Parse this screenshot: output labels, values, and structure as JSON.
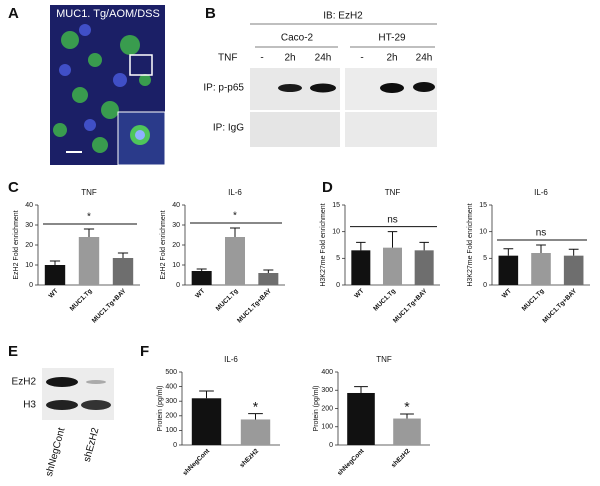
{
  "panels": {
    "labels": [
      "A",
      "B",
      "C",
      "D",
      "E",
      "F"
    ]
  },
  "panel_a": {
    "title": "MUC1. Tg/AOM/DSS"
  },
  "panel_b": {
    "header": "IB: EzH2",
    "cell_lines": [
      "Caco-2",
      "HT-29"
    ],
    "treatment_label": "TNF",
    "conditions": [
      "-",
      "2h",
      "24h",
      "-",
      "2h",
      "24h"
    ],
    "rows": [
      "IP: p-p65",
      "IP: IgG"
    ]
  },
  "panel_e": {
    "bands": [
      "EzH2",
      "H3"
    ],
    "lanes": [
      "shNegCont",
      "shEzH2"
    ]
  },
  "chart_data": [
    {
      "type": "bar",
      "title": "TNF",
      "ylabel": "EzH2 Fold enrichment",
      "categories": [
        "WT",
        "MUC1.Tg",
        "MUC1.Tg+BAY"
      ],
      "values": [
        10,
        24,
        13.5
      ],
      "errors": [
        2,
        4,
        2.5
      ],
      "colors": [
        "#111111",
        "#9a9a9a",
        "#6e6e6e"
      ],
      "ylim": [
        0,
        40
      ],
      "yticks": [
        0,
        10,
        20,
        30,
        40
      ],
      "annotation": "*"
    },
    {
      "type": "bar",
      "title": "IL-6",
      "ylabel": "EzH2 Fold enrichment",
      "categories": [
        "WT",
        "MUC1.Tg",
        "MUC1.Tg+BAY"
      ],
      "values": [
        7,
        24,
        6
      ],
      "errors": [
        1,
        4.5,
        1.5
      ],
      "colors": [
        "#111111",
        "#9a9a9a",
        "#6e6e6e"
      ],
      "ylim": [
        0,
        40
      ],
      "yticks": [
        0,
        10,
        20,
        30,
        40
      ],
      "annotation": "*"
    },
    {
      "type": "bar",
      "title": "TNF",
      "ylabel": "H3K27me Fold enrichment",
      "categories": [
        "WT",
        "MUC1.Tg",
        "MUC1.Tg+BAY"
      ],
      "values": [
        6.5,
        7,
        6.5
      ],
      "errors": [
        1.5,
        3,
        1.5
      ],
      "colors": [
        "#111111",
        "#9a9a9a",
        "#6e6e6e"
      ],
      "ylim": [
        0,
        15
      ],
      "yticks": [
        0,
        5,
        10,
        15
      ],
      "annotation": "ns"
    },
    {
      "type": "bar",
      "title": "IL-6",
      "ylabel": "H3K27me Fold enrichment",
      "categories": [
        "WT",
        "MUC1.Tg",
        "MUC1.Tg+BAY"
      ],
      "values": [
        5.5,
        6,
        5.5
      ],
      "errors": [
        1.3,
        1.5,
        1.2
      ],
      "colors": [
        "#111111",
        "#9a9a9a",
        "#6e6e6e"
      ],
      "ylim": [
        0,
        15
      ],
      "yticks": [
        0,
        5,
        10,
        15
      ],
      "annotation": "ns"
    },
    {
      "type": "bar",
      "title": "IL-6",
      "ylabel": "Protein (pg/ml)",
      "categories": [
        "shNegCont",
        "shEzH2"
      ],
      "values": [
        320,
        175
      ],
      "errors": [
        50,
        40
      ],
      "colors": [
        "#111111",
        "#9a9a9a"
      ],
      "ylim": [
        0,
        500
      ],
      "yticks": [
        0,
        100,
        200,
        300,
        400,
        500
      ],
      "annotation": "*"
    },
    {
      "type": "bar",
      "title": "TNF",
      "ylabel": "Protein (pg/ml)",
      "categories": [
        "shNegCont",
        "shEzH2"
      ],
      "values": [
        285,
        145
      ],
      "errors": [
        35,
        25
      ],
      "colors": [
        "#111111",
        "#9a9a9a"
      ],
      "ylim": [
        0,
        400
      ],
      "yticks": [
        0,
        100,
        200,
        300,
        400
      ],
      "annotation": "*"
    }
  ]
}
